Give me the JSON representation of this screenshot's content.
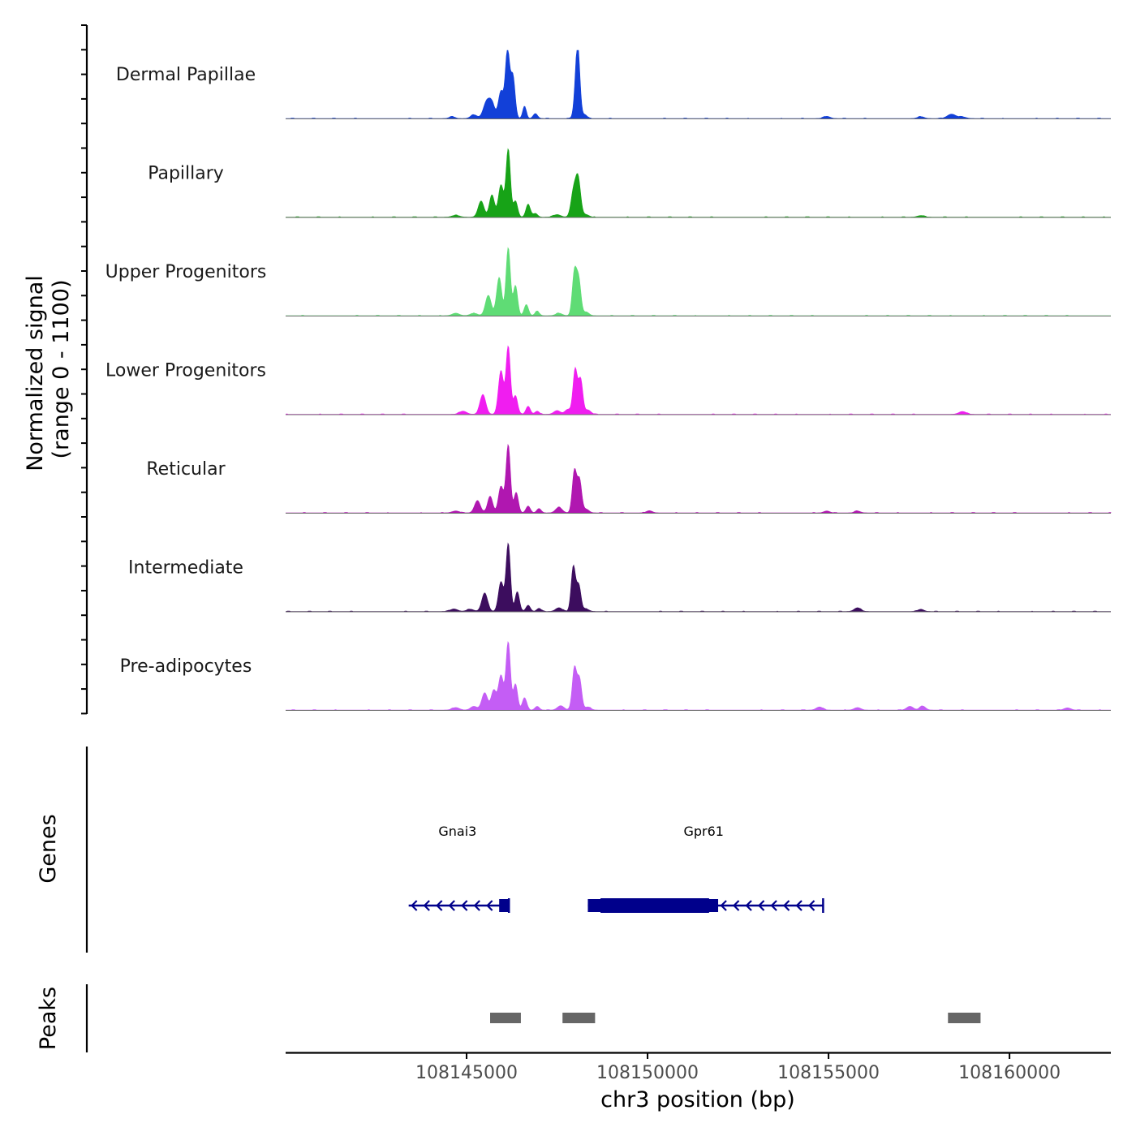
{
  "chart_data": {
    "type": "area",
    "title": "",
    "signal_axis": {
      "label_line1": "Normalized signal",
      "label_line2": "(range 0 - 1100)",
      "range": [
        0,
        1100
      ]
    },
    "x_axis": {
      "label": "chr3 position (bp)",
      "range": [
        108140000,
        108162800
      ],
      "ticks": [
        108145000,
        108150000,
        108155000,
        108160000
      ],
      "tick_labels": [
        "108145000",
        "108150000",
        "108155000",
        "108160000"
      ]
    },
    "tracks": [
      {
        "name": "Dermal Papillae",
        "color": "#1240d8",
        "peaks": [
          [
            108144600,
            30,
            80
          ],
          [
            108145200,
            60,
            90
          ],
          [
            108145550,
            260,
            90
          ],
          [
            108145700,
            230,
            80
          ],
          [
            108145950,
            440,
            70
          ],
          [
            108146130,
            1100,
            60
          ],
          [
            108146280,
            680,
            60
          ],
          [
            108146600,
            200,
            50
          ],
          [
            108146900,
            80,
            60
          ],
          [
            108148050,
            320,
            70
          ],
          [
            108148050,
            0,
            0
          ],
          [
            108148070,
            900,
            60
          ],
          [
            108148270,
            60,
            60
          ],
          [
            108154950,
            35,
            90
          ],
          [
            108157550,
            30,
            90
          ],
          [
            108158400,
            70,
            120
          ],
          [
            108158700,
            25,
            100
          ]
        ]
      },
      {
        "name": "Papillary",
        "color": "#17a317",
        "peaks": [
          [
            108144700,
            30,
            100
          ],
          [
            108145400,
            260,
            80
          ],
          [
            108145700,
            360,
            70
          ],
          [
            108145950,
            520,
            70
          ],
          [
            108146150,
            1100,
            60
          ],
          [
            108146350,
            260,
            60
          ],
          [
            108146700,
            210,
            60
          ],
          [
            108146900,
            60,
            60
          ],
          [
            108147500,
            40,
            100
          ],
          [
            108147950,
            380,
            70
          ],
          [
            108148080,
            620,
            70
          ],
          [
            108148300,
            40,
            80
          ],
          [
            108157550,
            25,
            90
          ]
        ]
      },
      {
        "name": "Upper Progenitors",
        "color": "#5fdc75",
        "peaks": [
          [
            108144700,
            40,
            100
          ],
          [
            108145200,
            40,
            100
          ],
          [
            108145600,
            330,
            80
          ],
          [
            108145900,
            620,
            70
          ],
          [
            108146150,
            1100,
            60
          ],
          [
            108146350,
            480,
            60
          ],
          [
            108146650,
            180,
            60
          ],
          [
            108146950,
            70,
            60
          ],
          [
            108147550,
            40,
            90
          ],
          [
            108147980,
            700,
            60
          ],
          [
            108148100,
            560,
            60
          ],
          [
            108148300,
            60,
            80
          ]
        ]
      },
      {
        "name": "Lower Progenitors",
        "color": "#f01df0",
        "peaks": [
          [
            108144900,
            50,
            100
          ],
          [
            108145450,
            320,
            80
          ],
          [
            108145950,
            700,
            70
          ],
          [
            108146150,
            1100,
            60
          ],
          [
            108146350,
            300,
            60
          ],
          [
            108146700,
            130,
            60
          ],
          [
            108146950,
            50,
            60
          ],
          [
            108147500,
            60,
            90
          ],
          [
            108147800,
            80,
            80
          ],
          [
            108148000,
            720,
            60
          ],
          [
            108148150,
            560,
            60
          ],
          [
            108148350,
            70,
            80
          ],
          [
            108158700,
            45,
            100
          ]
        ]
      },
      {
        "name": "Reticular",
        "color": "#b017b0",
        "peaks": [
          [
            108144700,
            30,
            100
          ],
          [
            108145300,
            200,
            80
          ],
          [
            108145650,
            270,
            70
          ],
          [
            108145950,
            430,
            70
          ],
          [
            108146150,
            1100,
            60
          ],
          [
            108146370,
            330,
            60
          ],
          [
            108146700,
            110,
            60
          ],
          [
            108147000,
            70,
            60
          ],
          [
            108147550,
            90,
            90
          ],
          [
            108147980,
            680,
            60
          ],
          [
            108148120,
            520,
            60
          ],
          [
            108148300,
            60,
            80
          ],
          [
            108150050,
            35,
            80
          ],
          [
            108154950,
            30,
            80
          ],
          [
            108155800,
            30,
            80
          ]
        ]
      },
      {
        "name": "Intermediate",
        "color": "#3c0d5e",
        "peaks": [
          [
            108144650,
            40,
            100
          ],
          [
            108145100,
            35,
            100
          ],
          [
            108145500,
            300,
            80
          ],
          [
            108145950,
            480,
            70
          ],
          [
            108146150,
            1100,
            60
          ],
          [
            108146400,
            320,
            60
          ],
          [
            108146700,
            100,
            60
          ],
          [
            108147000,
            50,
            60
          ],
          [
            108147550,
            60,
            90
          ],
          [
            108147950,
            730,
            60
          ],
          [
            108148100,
            420,
            60
          ],
          [
            108148300,
            40,
            80
          ],
          [
            108155800,
            60,
            90
          ],
          [
            108157550,
            35,
            80
          ]
        ]
      },
      {
        "name": "Pre-adipocytes",
        "color": "#c45df5",
        "peaks": [
          [
            108144700,
            40,
            100
          ],
          [
            108145200,
            60,
            90
          ],
          [
            108145500,
            280,
            80
          ],
          [
            108145750,
            320,
            70
          ],
          [
            108145950,
            560,
            70
          ],
          [
            108146150,
            1100,
            60
          ],
          [
            108146350,
            420,
            60
          ],
          [
            108146600,
            200,
            60
          ],
          [
            108146950,
            60,
            60
          ],
          [
            108147600,
            70,
            90
          ],
          [
            108147980,
            680,
            60
          ],
          [
            108148120,
            500,
            60
          ],
          [
            108148350,
            50,
            80
          ],
          [
            108154750,
            50,
            90
          ],
          [
            108155800,
            40,
            90
          ],
          [
            108157250,
            60,
            90
          ],
          [
            108157600,
            65,
            80
          ],
          [
            108161600,
            35,
            90
          ]
        ]
      }
    ],
    "genes": [
      {
        "name": "Gnai3",
        "strand": "-",
        "start": 108143400,
        "end": 108146170,
        "exons": [
          [
            108145900,
            108146170
          ]
        ],
        "label_pos": 108144750
      },
      {
        "name": "Gpr61",
        "strand": "-",
        "start": 108148350,
        "end": 108154850,
        "exons": [
          [
            108148350,
            108151950
          ]
        ],
        "thick": [
          [
            108148700,
            108151700
          ]
        ],
        "label_pos": 108151550
      }
    ],
    "genes_label": "Genes",
    "peaks_label": "Peaks",
    "peak_regions": [
      [
        108145650,
        108146500
      ],
      [
        108147650,
        108148550
      ],
      [
        108158300,
        108159200
      ]
    ]
  }
}
